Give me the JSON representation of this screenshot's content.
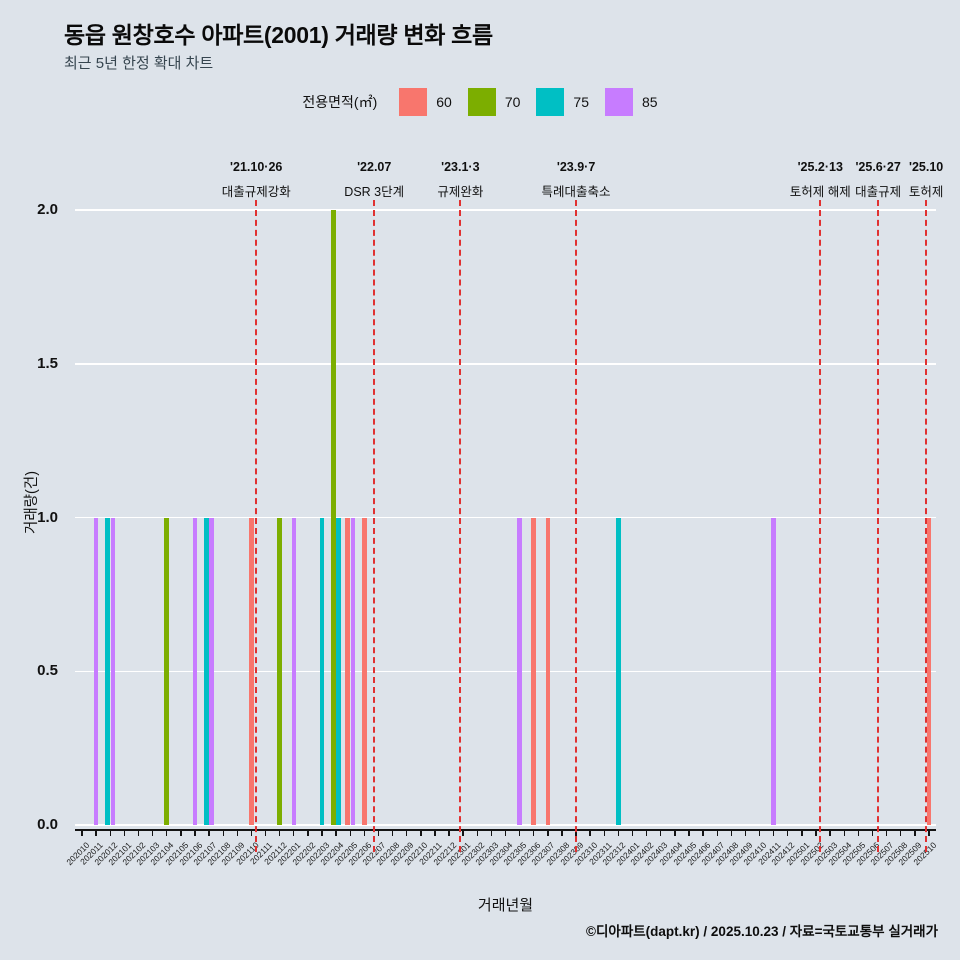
{
  "header": {
    "title": "동읍 원창호수 아파트(2001) 거래량 변화 흐름",
    "subtitle": "최근 5년 한정 확대 차트"
  },
  "legend": {
    "label": "전용면적(㎡)",
    "items": [
      {
        "label": "60",
        "color": "#F8766D"
      },
      {
        "label": "70",
        "color": "#7CAE00"
      },
      {
        "label": "75",
        "color": "#00BFC4"
      },
      {
        "label": "85",
        "color": "#C77CFF"
      }
    ]
  },
  "chart_data": {
    "type": "bar",
    "title": "동읍 원창호수 아파트(2001) 거래량 변화 흐름",
    "subtitle": "최근 5년 한정 확대 차트",
    "xlabel": "거래년월",
    "ylabel": "거래량(건)",
    "ylim": [
      0,
      2
    ],
    "yticks": [
      "0.0",
      "0.5",
      "1.0",
      "1.5",
      "2.0"
    ],
    "grid": "horizontal-major",
    "legend_position": "top",
    "months": [
      "202010",
      "202011",
      "202012",
      "202101",
      "202102",
      "202103",
      "202104",
      "202105",
      "202106",
      "202107",
      "202108",
      "202109",
      "202110",
      "202111",
      "202112",
      "202201",
      "202202",
      "202203",
      "202204",
      "202205",
      "202206",
      "202207",
      "202208",
      "202209",
      "202210",
      "202211",
      "202212",
      "202301",
      "202302",
      "202303",
      "202304",
      "202305",
      "202306",
      "202307",
      "202308",
      "202309",
      "202310",
      "202311",
      "202312",
      "202401",
      "202402",
      "202403",
      "202404",
      "202405",
      "202406",
      "202407",
      "202408",
      "202409",
      "202410",
      "202411",
      "202412",
      "202501",
      "202502",
      "202503",
      "202504",
      "202505",
      "202506",
      "202507",
      "202508",
      "202509",
      "202510"
    ],
    "bars": [
      {
        "month": "202011",
        "area": "85",
        "value": 1
      },
      {
        "month": "202012",
        "area": "75",
        "value": 1
      },
      {
        "month": "202012",
        "area": "85",
        "value": 1
      },
      {
        "month": "202104",
        "area": "70",
        "value": 1
      },
      {
        "month": "202106",
        "area": "85",
        "value": 1
      },
      {
        "month": "202107",
        "area": "75",
        "value": 1
      },
      {
        "month": "202107",
        "area": "85",
        "value": 1
      },
      {
        "month": "202110",
        "area": "60",
        "value": 1
      },
      {
        "month": "202112",
        "area": "70",
        "value": 1
      },
      {
        "month": "202201",
        "area": "85",
        "value": 1
      },
      {
        "month": "202203",
        "area": "75",
        "value": 1
      },
      {
        "month": "202204",
        "area": "70",
        "value": 2
      },
      {
        "month": "202204",
        "area": "75",
        "value": 1
      },
      {
        "month": "202205",
        "area": "60",
        "value": 1
      },
      {
        "month": "202205",
        "area": "85",
        "value": 1
      },
      {
        "month": "202206",
        "area": "60",
        "value": 1
      },
      {
        "month": "202305",
        "area": "85",
        "value": 1
      },
      {
        "month": "202306",
        "area": "60",
        "value": 1
      },
      {
        "month": "202307",
        "area": "60",
        "value": 1
      },
      {
        "month": "202312",
        "area": "75",
        "value": 1
      },
      {
        "month": "202411",
        "area": "85",
        "value": 1
      },
      {
        "month": "202510",
        "area": "60",
        "value": 1
      }
    ],
    "events": [
      {
        "date": "'21.10·26",
        "label": "대출규제강화",
        "x_index": 12.84
      },
      {
        "date": "'22.07",
        "label": "DSR 3단계",
        "x_index": 21.2
      },
      {
        "date": "'23.1·3",
        "label": "규제완화",
        "x_index": 27.3
      },
      {
        "date": "'23.9·7",
        "label": "특례대출축소",
        "x_index": 35.5
      },
      {
        "date": "'25.2·13",
        "label": "토허제 해제",
        "x_index": 52.8
      },
      {
        "date": "'25.6·27",
        "label": "대출규제",
        "x_index": 56.9
      },
      {
        "date": "'25.10",
        "label": "토허제",
        "x_index": 60.3
      }
    ]
  },
  "footer": {
    "caption": "©디아파트(dapt.kr) / 2025.10.23 / 자료=국토교통부 실거래가"
  },
  "colors": {
    "background": "#dde3ea",
    "gridline": "#ffffff",
    "event_line": "#e03131",
    "axis": "#141414"
  }
}
